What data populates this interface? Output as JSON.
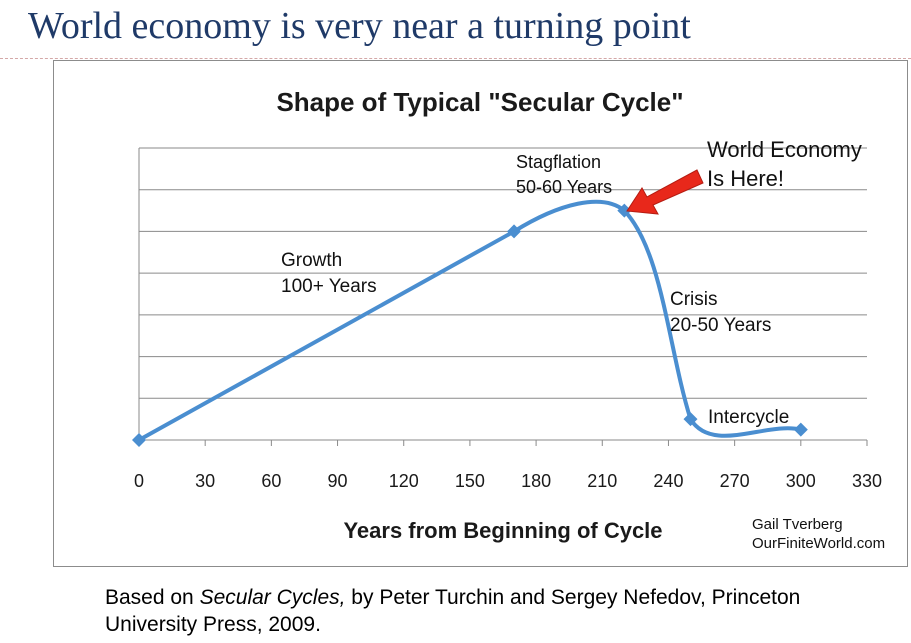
{
  "slide": {
    "title": "World economy is very near a turning point"
  },
  "chart_data": {
    "type": "line",
    "title": "Shape of Typical \"Secular Cycle\"",
    "xlabel": "Years from Beginning of Cycle",
    "ylabel": "",
    "xlim": [
      0,
      330
    ],
    "x_ticks": [
      0,
      30,
      60,
      90,
      120,
      150,
      180,
      210,
      240,
      270,
      300,
      330
    ],
    "ylim": [
      0,
      7
    ],
    "grid": "horizontal",
    "legend": "none",
    "series": [
      {
        "color": "#4a8ed0",
        "marker": "diamond",
        "smooth": true,
        "x": [
          0,
          170,
          220,
          250,
          300
        ],
        "y": [
          0,
          5.0,
          5.5,
          0.5,
          0.25
        ]
      }
    ],
    "annotations": [
      {
        "key": "growth",
        "lines": [
          "Growth",
          "100+ Years"
        ]
      },
      {
        "key": "stagflation",
        "lines": [
          "Stagflation",
          "50-60 Years"
        ]
      },
      {
        "key": "crisis",
        "lines": [
          "Crisis",
          "20-50 Years"
        ]
      },
      {
        "key": "intercycle",
        "lines": [
          "Intercycle"
        ]
      },
      {
        "key": "world",
        "lines": [
          "World Economy",
          "Is Here!"
        ]
      }
    ],
    "arrow_color": "#e8281b",
    "credit": [
      "Gail Tverberg",
      "OurFiniteWorld.com"
    ]
  },
  "footer": {
    "prefix": "Based on ",
    "book": "Secular Cycles,",
    "suffix": " by Peter Turchin and Sergey Nefedov, Princeton University Press, 2009."
  }
}
